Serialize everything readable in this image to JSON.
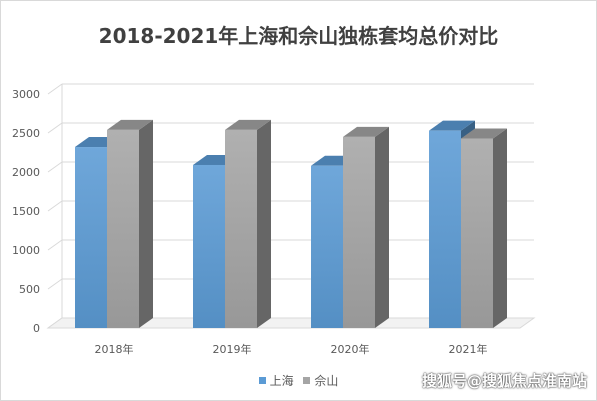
{
  "chart_data": {
    "type": "bar",
    "style": "3d-clustered-column",
    "title": "2018-2021年上海和佘山独栋套均总价对比",
    "categories": [
      "2018年",
      "2019年",
      "2020年",
      "2021年"
    ],
    "series": [
      {
        "name": "上海",
        "values": [
          2320,
          2090,
          2080,
          2530
        ],
        "color": "#5b9bd5"
      },
      {
        "name": "佘山",
        "values": [
          2540,
          2540,
          2450,
          2430
        ],
        "color": "#a5a5a5"
      }
    ],
    "yticks": [
      0,
      500,
      1000,
      1500,
      2000,
      2500,
      3000
    ],
    "ylim": [
      0,
      3000
    ],
    "xlabel": "",
    "ylabel": "",
    "grid": true,
    "legend_position": "bottom"
  },
  "watermark": "搜狐号@搜狐焦点淮南站"
}
